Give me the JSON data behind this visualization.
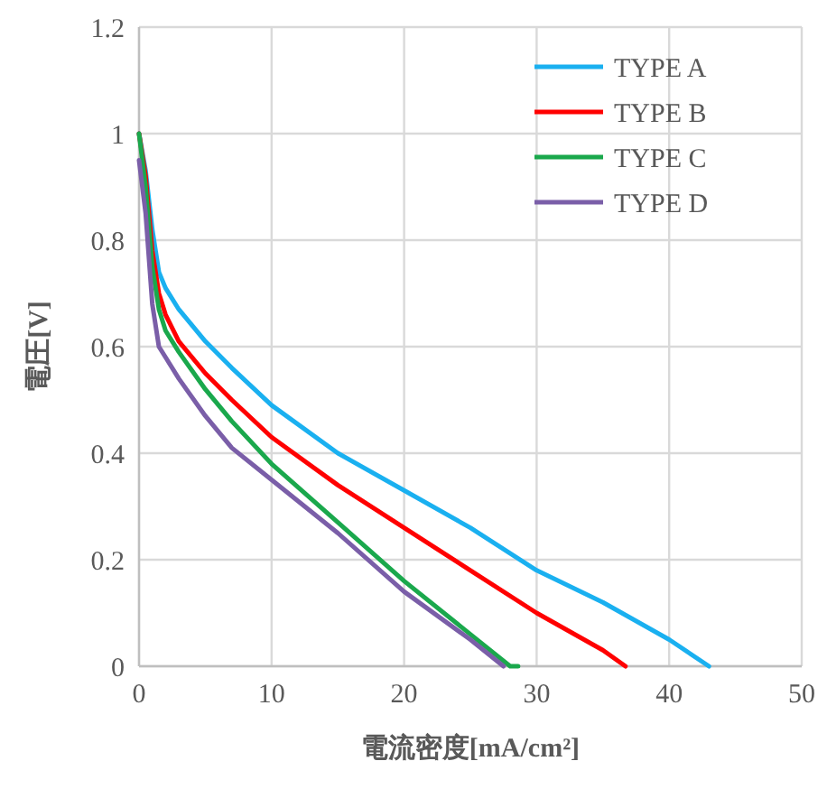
{
  "chart_data": {
    "type": "line",
    "xlabel": "電流密度[mA/cm²]",
    "ylabel": "電圧[V]",
    "xlim": [
      0,
      50
    ],
    "xticks": [
      0,
      10,
      20,
      30,
      40,
      50
    ],
    "ylim": [
      0,
      1.2
    ],
    "yticks": [
      0,
      0.2,
      0.4,
      0.6,
      0.8,
      1,
      1.2
    ],
    "grid": true,
    "legend": "top right",
    "marker": "none",
    "line_style": "solid",
    "series": [
      {
        "name": "TYPE A",
        "color": "#1ab0f0",
        "x": [
          0,
          0.5,
          1,
          1.5,
          2,
          3,
          5,
          7,
          10,
          15,
          20,
          25,
          30,
          35,
          40,
          43
        ],
        "values": [
          1.0,
          0.93,
          0.82,
          0.74,
          0.71,
          0.67,
          0.61,
          0.56,
          0.49,
          0.4,
          0.33,
          0.26,
          0.18,
          0.12,
          0.05,
          0
        ]
      },
      {
        "name": "TYPE B",
        "color": "#ff0000",
        "x": [
          0,
          0.5,
          1,
          1.5,
          2,
          3,
          5,
          7,
          10,
          15,
          20,
          25,
          30,
          35,
          36.7
        ],
        "values": [
          1.0,
          0.92,
          0.78,
          0.7,
          0.66,
          0.61,
          0.55,
          0.5,
          0.43,
          0.34,
          0.26,
          0.18,
          0.1,
          0.03,
          0
        ]
      },
      {
        "name": "TYPE C",
        "color": "#1aa84c",
        "x": [
          0,
          0.5,
          1,
          1.5,
          2,
          3,
          5,
          7,
          10,
          15,
          20,
          25,
          28,
          28.6
        ],
        "values": [
          1.0,
          0.9,
          0.75,
          0.67,
          0.63,
          0.59,
          0.52,
          0.46,
          0.38,
          0.27,
          0.16,
          0.06,
          0,
          0
        ]
      },
      {
        "name": "TYPE D",
        "color": "#7a5ea8",
        "x": [
          0,
          0.5,
          1,
          1.5,
          2,
          3,
          5,
          7,
          10,
          15,
          20,
          25,
          27.5
        ],
        "values": [
          0.95,
          0.85,
          0.68,
          0.6,
          0.58,
          0.54,
          0.47,
          0.41,
          0.35,
          0.25,
          0.14,
          0.05,
          0
        ]
      }
    ]
  }
}
